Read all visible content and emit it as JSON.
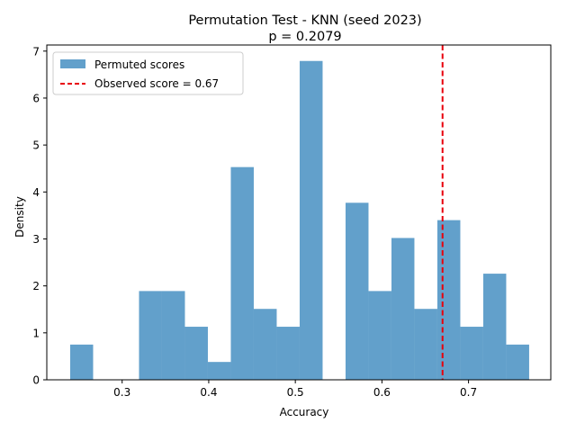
{
  "chart_data": {
    "type": "bar",
    "title_line1": "Permutation Test - KNN (seed 2023)",
    "title_line2": "p = 0.2079",
    "xlabel": "Accuracy",
    "ylabel": "Density",
    "xlim": [
      0.213,
      0.795
    ],
    "ylim": [
      0,
      7.13
    ],
    "xticks": [
      0.3,
      0.4,
      0.5,
      0.6,
      0.7
    ],
    "xtick_labels": [
      "0.3",
      "0.4",
      "0.5",
      "0.6",
      "0.7"
    ],
    "yticks": [
      0,
      1,
      2,
      3,
      4,
      5,
      6,
      7
    ],
    "ytick_labels": [
      "0",
      "1",
      "2",
      "3",
      "4",
      "5",
      "6",
      "7"
    ],
    "bin_edges": [
      0.24,
      0.2665,
      0.293,
      0.3195,
      0.346,
      0.3725,
      0.399,
      0.4255,
      0.452,
      0.4785,
      0.505,
      0.5315,
      0.558,
      0.5845,
      0.611,
      0.6375,
      0.664,
      0.6905,
      0.717,
      0.7435,
      0.77
    ],
    "values": [
      0.75,
      0,
      0,
      1.89,
      1.89,
      1.13,
      0.38,
      4.53,
      1.51,
      1.13,
      6.79,
      0,
      3.77,
      1.89,
      3.02,
      1.51,
      3.4,
      1.13,
      2.26,
      0.75
    ],
    "observed_value": 0.67,
    "legend_position": "upper-left",
    "legend": {
      "hist_label": "Permuted scores",
      "line_label": "Observed score = 0.67"
    },
    "colors": {
      "bars": "#62a0cb",
      "line": "#e8000b",
      "axes": "#000000"
    }
  }
}
